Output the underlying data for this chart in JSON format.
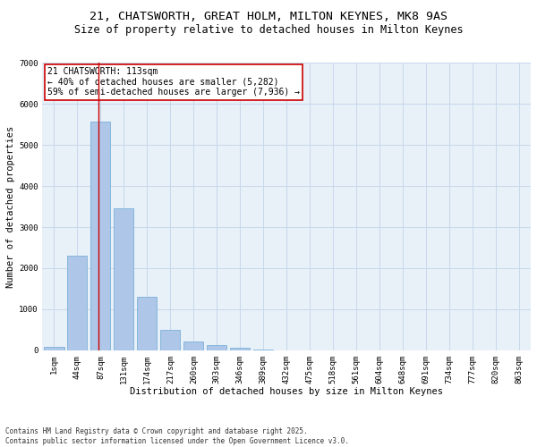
{
  "title": "21, CHATSWORTH, GREAT HOLM, MILTON KEYNES, MK8 9AS",
  "subtitle": "Size of property relative to detached houses in Milton Keynes",
  "xlabel": "Distribution of detached houses by size in Milton Keynes",
  "ylabel": "Number of detached properties",
  "bar_color": "#aec6e8",
  "bar_edge_color": "#6aaad4",
  "grid_color": "#c8d8eb",
  "bg_color": "#e8f0f8",
  "categories": [
    "1sqm",
    "44sqm",
    "87sqm",
    "131sqm",
    "174sqm",
    "217sqm",
    "260sqm",
    "303sqm",
    "346sqm",
    "389sqm",
    "432sqm",
    "475sqm",
    "518sqm",
    "561sqm",
    "604sqm",
    "648sqm",
    "691sqm",
    "734sqm",
    "777sqm",
    "820sqm",
    "863sqm"
  ],
  "values": [
    75,
    2300,
    5580,
    3450,
    1310,
    500,
    205,
    120,
    60,
    10,
    0,
    0,
    0,
    0,
    0,
    0,
    0,
    0,
    0,
    0,
    0
  ],
  "vline_color": "#cc0000",
  "vline_position": 2.4,
  "annotation_text": "21 CHATSWORTH: 113sqm\n← 40% of detached houses are smaller (5,282)\n59% of semi-detached houses are larger (7,936) →",
  "annotation_box_color": "#cc0000",
  "ylim": [
    0,
    7000
  ],
  "yticks": [
    0,
    1000,
    2000,
    3000,
    4000,
    5000,
    6000,
    7000
  ],
  "footnote": "Contains HM Land Registry data © Crown copyright and database right 2025.\nContains public sector information licensed under the Open Government Licence v3.0.",
  "title_fontsize": 9.5,
  "subtitle_fontsize": 8.5,
  "axis_label_fontsize": 7.5,
  "tick_fontsize": 6.5,
  "annotation_fontsize": 7,
  "footnote_fontsize": 5.5
}
